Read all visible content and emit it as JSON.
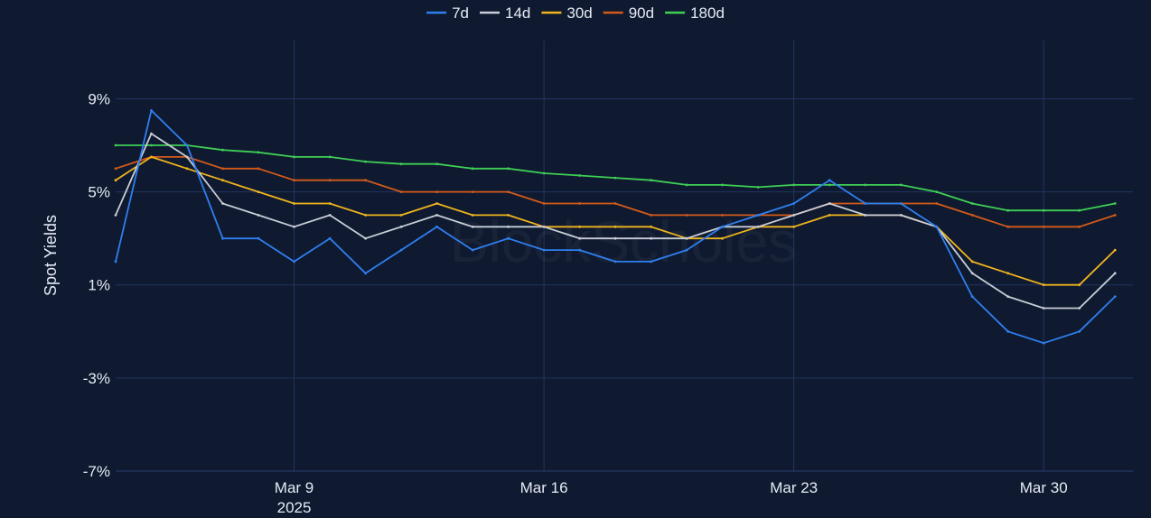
{
  "chart_data": {
    "type": "line",
    "title": "",
    "xlabel": "",
    "ylabel": "Spot Yields",
    "watermark": "BlockScholes",
    "x_range": [
      "2025-03-04",
      "2025-04-01T12:00"
    ],
    "x_ticks": [
      {
        "date": "2025-03-09",
        "label": "Mar 9",
        "sublabel": "2025"
      },
      {
        "date": "2025-03-16",
        "label": "Mar 16",
        "sublabel": ""
      },
      {
        "date": "2025-03-23",
        "label": "Mar 23",
        "sublabel": ""
      },
      {
        "date": "2025-03-30",
        "label": "Mar 30",
        "sublabel": ""
      }
    ],
    "ylim": [
      -7,
      11.5
    ],
    "y_ticks": [
      {
        "value": 9,
        "label": "9%"
      },
      {
        "value": 5,
        "label": "5%"
      },
      {
        "value": 1,
        "label": "1%"
      },
      {
        "value": -3,
        "label": "-3%"
      },
      {
        "value": -7,
        "label": "-7%"
      }
    ],
    "grid": true,
    "legend_position": "top-center",
    "x": [
      "2025-03-04",
      "2025-03-05",
      "2025-03-06",
      "2025-03-07",
      "2025-03-08",
      "2025-03-09",
      "2025-03-10",
      "2025-03-11",
      "2025-03-12",
      "2025-03-13",
      "2025-03-14",
      "2025-03-15",
      "2025-03-16",
      "2025-03-17",
      "2025-03-18",
      "2025-03-19",
      "2025-03-20",
      "2025-03-21",
      "2025-03-22",
      "2025-03-23",
      "2025-03-24",
      "2025-03-25",
      "2025-03-26",
      "2025-03-27",
      "2025-03-28",
      "2025-03-29",
      "2025-03-30",
      "2025-03-31",
      "2025-04-01"
    ],
    "series": [
      {
        "name": "7d",
        "color": "#2f7ff0",
        "values": [
          2.0,
          8.5,
          7.0,
          3.0,
          3.0,
          2.0,
          3.0,
          1.5,
          2.5,
          3.5,
          2.5,
          3.0,
          2.5,
          2.5,
          2.0,
          2.0,
          2.5,
          3.5,
          4.0,
          4.5,
          5.5,
          4.5,
          4.5,
          3.5,
          0.5,
          -1.0,
          -1.5,
          -1.0,
          0.5
        ]
      },
      {
        "name": "14d",
        "color": "#c8cdd6",
        "values": [
          4.0,
          7.5,
          6.5,
          4.5,
          4.0,
          3.5,
          4.0,
          3.0,
          3.5,
          4.0,
          3.5,
          3.5,
          3.5,
          3.0,
          3.0,
          3.0,
          3.0,
          3.5,
          3.5,
          4.0,
          4.5,
          4.0,
          4.0,
          3.5,
          1.5,
          0.5,
          0.0,
          0.0,
          1.5
        ]
      },
      {
        "name": "30d",
        "color": "#f0b41e",
        "values": [
          5.5,
          6.5,
          6.0,
          5.5,
          5.0,
          4.5,
          4.5,
          4.0,
          4.0,
          4.5,
          4.0,
          4.0,
          3.5,
          3.5,
          3.5,
          3.5,
          3.0,
          3.0,
          3.5,
          3.5,
          4.0,
          4.0,
          4.0,
          3.5,
          2.0,
          1.5,
          1.0,
          1.0,
          2.5
        ]
      },
      {
        "name": "90d",
        "color": "#d45a1a",
        "values": [
          6.0,
          6.5,
          6.5,
          6.0,
          6.0,
          5.5,
          5.5,
          5.5,
          5.0,
          5.0,
          5.0,
          5.0,
          4.5,
          4.5,
          4.5,
          4.0,
          4.0,
          4.0,
          4.0,
          4.0,
          4.5,
          4.5,
          4.5,
          4.5,
          4.0,
          3.5,
          3.5,
          3.5,
          4.0
        ]
      },
      {
        "name": "180d",
        "color": "#3fcf55",
        "values": [
          7.0,
          7.0,
          7.0,
          6.8,
          6.7,
          6.5,
          6.5,
          6.3,
          6.2,
          6.2,
          6.0,
          6.0,
          5.8,
          5.7,
          5.6,
          5.5,
          5.3,
          5.3,
          5.2,
          5.3,
          5.3,
          5.3,
          5.3,
          5.0,
          4.5,
          4.2,
          4.2,
          4.2,
          4.5
        ]
      }
    ]
  }
}
